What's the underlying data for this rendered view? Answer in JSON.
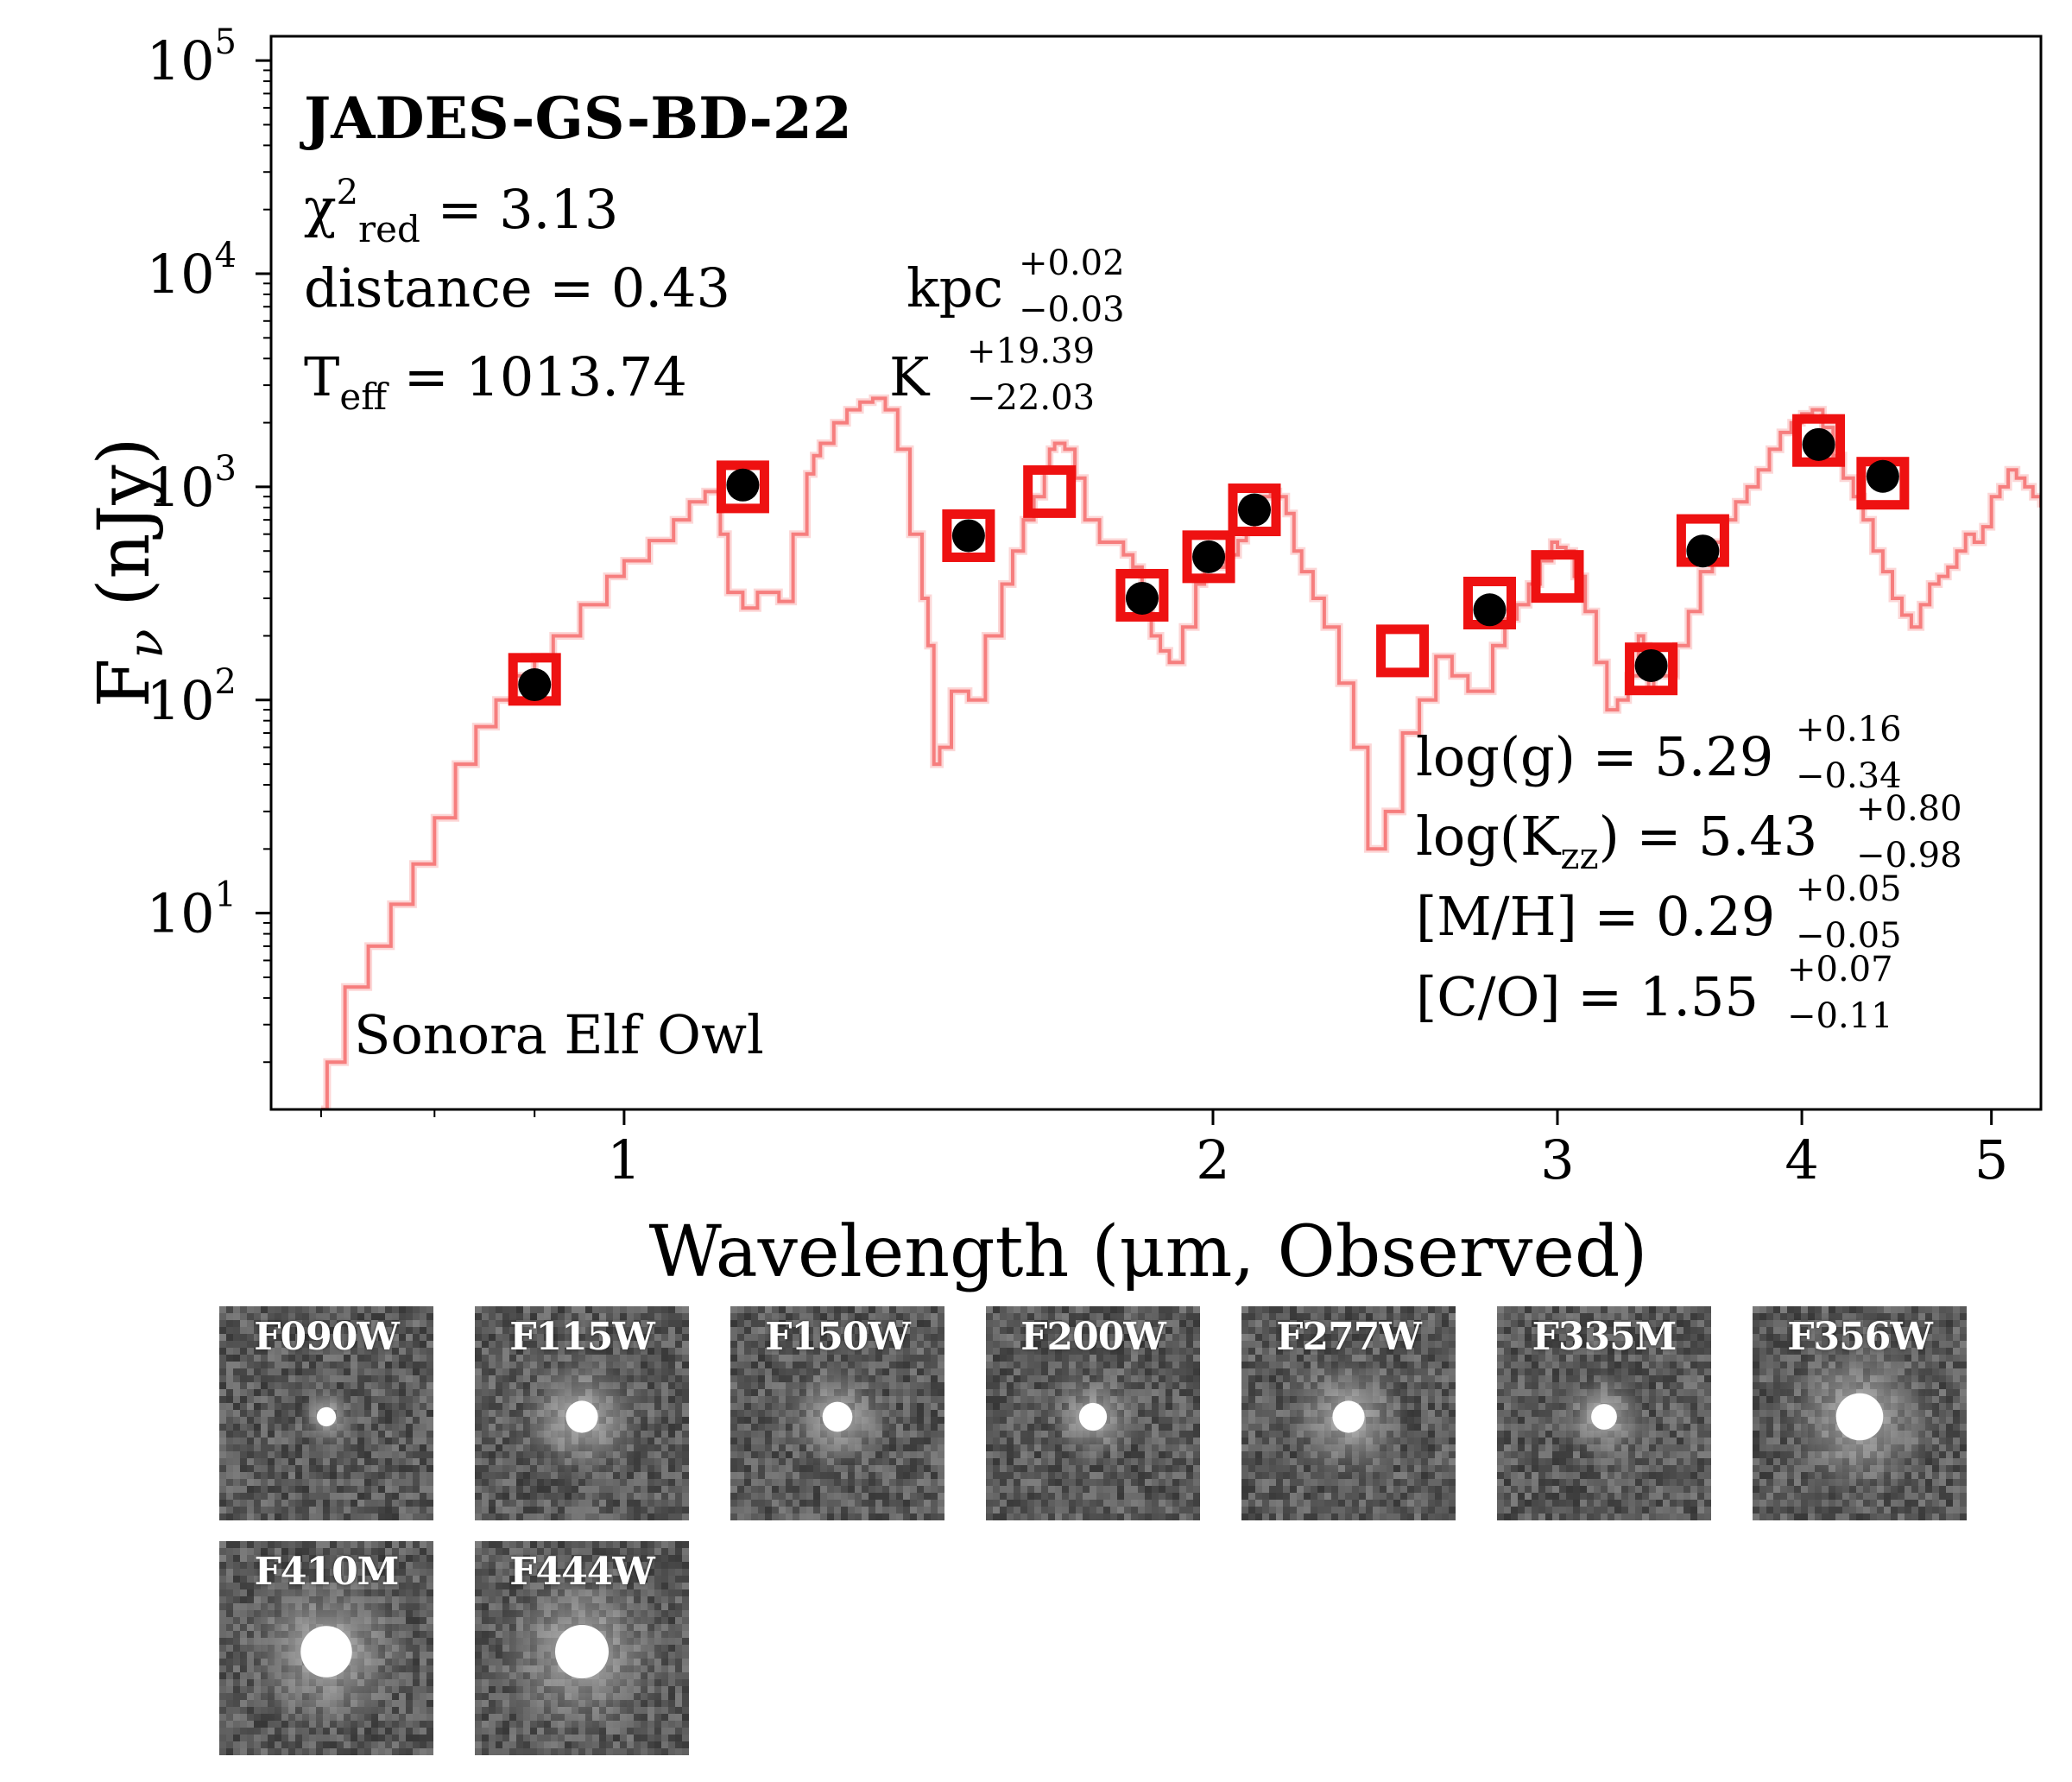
{
  "chart_data": {
    "type": "scatter",
    "title": "JADES-GS-BD-22",
    "xlabel": "Wavelength (μm, Observed)",
    "ylabel": "Fν (nJy)",
    "xscale": "log",
    "yscale": "log",
    "xlim": [
      0.66,
      5.3
    ],
    "ylim": [
      1.2,
      130000
    ],
    "x_ticks": [
      1,
      2,
      3,
      4,
      5
    ],
    "x_tick_labels": [
      "1",
      "2",
      "3",
      "4",
      "5"
    ],
    "y_ticks": [
      10,
      100,
      1000,
      10000,
      100000
    ],
    "grid": false,
    "stats": {
      "chi2_label": "χ²red = 3.13",
      "distance_label": "distance = 0.43 kpc",
      "distance_err": [
        "+0.02",
        "−0.03"
      ],
      "teff_label": "Teff = 1013.74 K",
      "teff_err": [
        "+19.39",
        "−22.03"
      ]
    },
    "params": {
      "logg_label": "log(g) = 5.29",
      "logg_err": [
        "+0.16",
        "−0.34"
      ],
      "logkzz_label": "log(Kzz) = 5.43",
      "logkzz_err": [
        "+0.80",
        "−0.98"
      ],
      "mh_label": "[M/H] = 0.29",
      "mh_err": [
        "+0.05",
        "−0.05"
      ],
      "co_label": "[C/O] = 1.55",
      "co_err": [
        "+0.07",
        "−0.11"
      ]
    },
    "model_label": "Sonora Elf Owl",
    "series": [
      {
        "type": "line",
        "color": "#f46e6e",
        "x": [
          0.7,
          0.705,
          0.72,
          0.74,
          0.76,
          0.78,
          0.8,
          0.82,
          0.84,
          0.86,
          0.88,
          0.9,
          0.92,
          0.95,
          0.98,
          1.0,
          1.03,
          1.06,
          1.08,
          1.1,
          1.12,
          1.13,
          1.15,
          1.17,
          1.2,
          1.22,
          1.24,
          1.25,
          1.26,
          1.28,
          1.3,
          1.32,
          1.34,
          1.36,
          1.38,
          1.4,
          1.42,
          1.43,
          1.44,
          1.45,
          1.47,
          1.5,
          1.53,
          1.56,
          1.58,
          1.6,
          1.62,
          1.64,
          1.65,
          1.66,
          1.68,
          1.7,
          1.72,
          1.75,
          1.78,
          1.8,
          1.82,
          1.84,
          1.86,
          1.88,
          1.9,
          1.93,
          1.96,
          1.98,
          2.0,
          2.03,
          2.06,
          2.08,
          2.1,
          2.12,
          2.14,
          2.16,
          2.18,
          2.2,
          2.22,
          2.25,
          2.28,
          2.32,
          2.36,
          2.4,
          2.45,
          2.5,
          2.55,
          2.6,
          2.65,
          2.7,
          2.75,
          2.78,
          2.82,
          2.86,
          2.9,
          2.94,
          2.98,
          3.0,
          3.03,
          3.06,
          3.1,
          3.14,
          3.18,
          3.22,
          3.26,
          3.3,
          3.32,
          3.34,
          3.36,
          3.4,
          3.45,
          3.5,
          3.55,
          3.6,
          3.65,
          3.7,
          3.75,
          3.8,
          3.85,
          3.9,
          3.95,
          4.0,
          4.05,
          4.1,
          4.15,
          4.2,
          4.25,
          4.3,
          4.35,
          4.4,
          4.45,
          4.5,
          4.55,
          4.6,
          4.65,
          4.7,
          4.75,
          4.8,
          4.85,
          4.9,
          4.95,
          5.0,
          5.05,
          5.1,
          5.15,
          5.2,
          5.25,
          5.3
        ],
        "y": [
          1.2,
          2.0,
          4.5,
          7.0,
          11,
          17,
          28,
          50,
          75,
          100,
          130,
          160,
          200,
          280,
          380,
          450,
          560,
          700,
          850,
          950,
          600,
          320,
          270,
          320,
          290,
          600,
          1150,
          1400,
          1600,
          2000,
          2300,
          2500,
          2600,
          2300,
          1500,
          600,
          300,
          180,
          50,
          60,
          110,
          100,
          200,
          350,
          500,
          700,
          900,
          1200,
          1500,
          1600,
          1500,
          1100,
          700,
          550,
          550,
          480,
          420,
          300,
          200,
          170,
          150,
          220,
          350,
          450,
          420,
          480,
          560,
          620,
          800,
          900,
          950,
          900,
          750,
          500,
          400,
          300,
          220,
          120,
          60,
          20,
          30,
          70,
          100,
          160,
          130,
          110,
          110,
          180,
          240,
          280,
          350,
          450,
          550,
          520,
          500,
          380,
          260,
          150,
          90,
          100,
          130,
          200,
          180,
          110,
          150,
          130,
          180,
          260,
          400,
          550,
          700,
          850,
          1000,
          1200,
          1500,
          1800,
          2000,
          2200,
          2300,
          1900,
          1400,
          1100,
          900,
          700,
          500,
          400,
          300,
          250,
          220,
          280,
          350,
          380,
          420,
          500,
          600,
          550,
          650,
          900,
          1000,
          1200,
          1100,
          1000,
          900,
          800
        ]
      },
      {
        "name": "model",
        "type": "square-marker",
        "color": "#ee1111",
        "x": [
          0.9,
          1.15,
          1.5,
          1.65,
          1.84,
          1.99,
          2.1,
          2.5,
          2.77,
          3.0,
          3.35,
          3.56,
          4.08,
          4.4
        ],
        "y": [
          125,
          1000,
          590,
          950,
          310,
          470,
          780,
          170,
          285,
          380,
          140,
          560,
          1650,
          1040
        ]
      },
      {
        "name": "observed",
        "type": "circle-marker",
        "color": "#000000",
        "x": [
          0.9,
          1.15,
          1.5,
          1.84,
          1.99,
          2.1,
          2.77,
          3.35,
          3.56,
          4.08,
          4.4
        ],
        "y": [
          118,
          1020,
          590,
          300,
          470,
          780,
          265,
          145,
          500,
          1580,
          1120
        ]
      }
    ]
  },
  "cutouts": [
    {
      "label": "F090W",
      "core": 0.09,
      "halo": 0.14
    },
    {
      "label": "F115W",
      "core": 0.15,
      "halo": 0.32
    },
    {
      "label": "F150W",
      "core": 0.14,
      "halo": 0.26
    },
    {
      "label": "F200W",
      "core": 0.13,
      "halo": 0.22
    },
    {
      "label": "F277W",
      "core": 0.15,
      "halo": 0.3
    },
    {
      "label": "F335M",
      "core": 0.12,
      "halo": 0.22
    },
    {
      "label": "F356W",
      "core": 0.22,
      "halo": 0.4
    },
    {
      "label": "F410M",
      "core": 0.24,
      "halo": 0.42
    },
    {
      "label": "F444W",
      "core": 0.25,
      "halo": 0.44
    }
  ],
  "colors": {
    "model_line": "#f46e6e",
    "model_marker": "#ee1111",
    "observed_marker": "#000000"
  }
}
